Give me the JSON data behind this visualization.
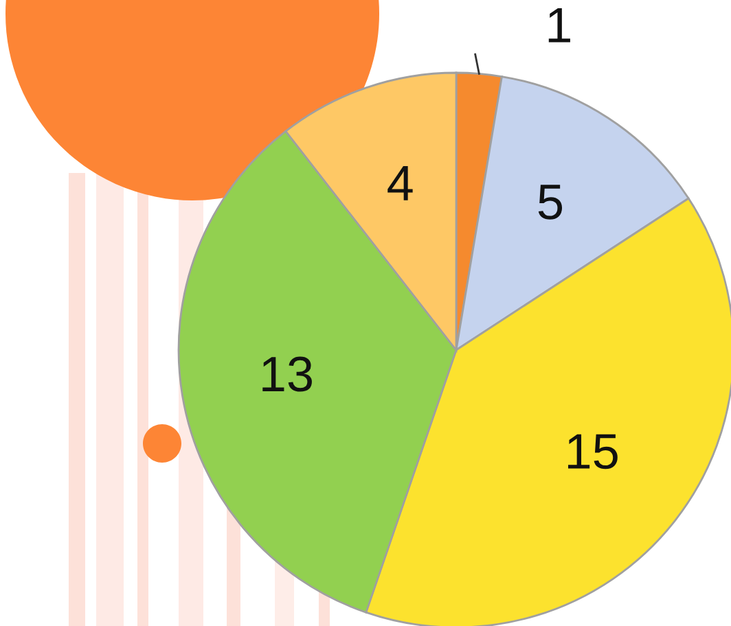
{
  "chart_data": {
    "type": "pie",
    "categories": [
      null,
      null,
      null,
      null,
      null
    ],
    "values": [
      1,
      5,
      15,
      13,
      4
    ],
    "colors": [
      "#f58a2e",
      "#c5d3ee",
      "#fce22e",
      "#92d050",
      "#fec865"
    ],
    "data_labels": true
  }
}
